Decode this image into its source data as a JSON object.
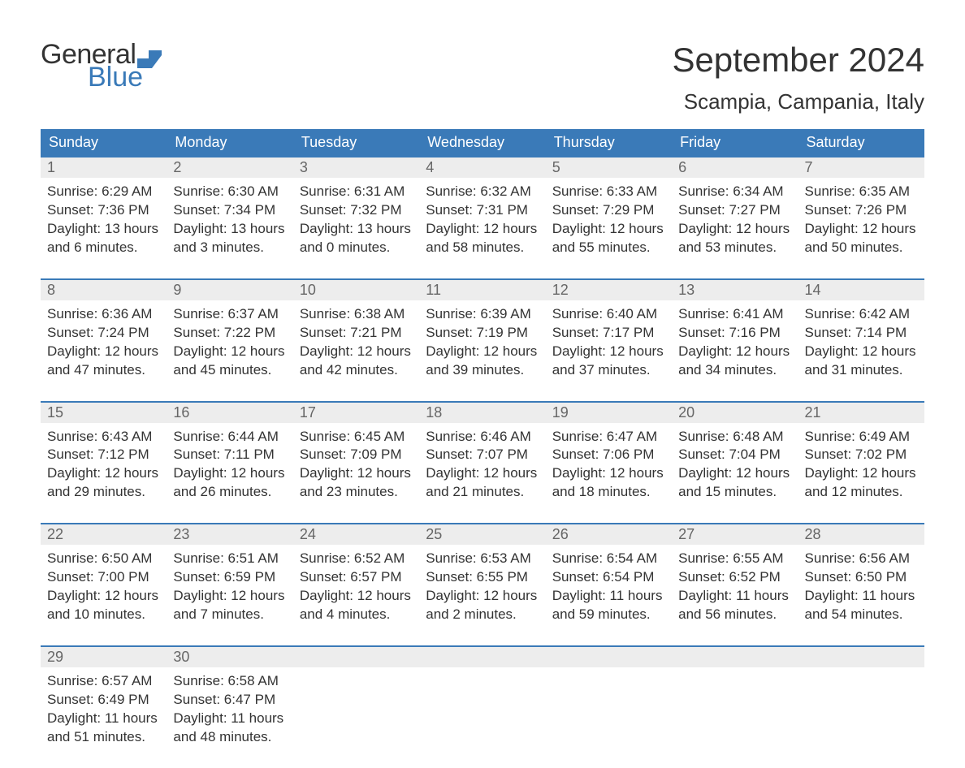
{
  "logo": {
    "text_top": "General",
    "text_bottom": "Blue",
    "top_color": "#333333",
    "bottom_color": "#3a7ab8",
    "flag_color": "#3a7ab8"
  },
  "title": "September 2024",
  "location": "Scampia, Campania, Italy",
  "styling": {
    "bg": "#ffffff",
    "header_bg": "#3a7ab8",
    "header_fg": "#ffffff",
    "daynum_bg": "#ededed",
    "daynum_fg": "#666666",
    "daynum_border_top": "#3a7ab8",
    "body_text": "#333333",
    "title_fontsize": 42,
    "location_fontsize": 26,
    "header_fontsize": 18,
    "daynum_fontsize": 18,
    "body_fontsize": 17
  },
  "weekdays": [
    "Sunday",
    "Monday",
    "Tuesday",
    "Wednesday",
    "Thursday",
    "Friday",
    "Saturday"
  ],
  "weeks": [
    [
      {
        "n": "1",
        "sunrise": "Sunrise: 6:29 AM",
        "sunset": "Sunset: 7:36 PM",
        "d1": "Daylight: 13 hours",
        "d2": "and 6 minutes."
      },
      {
        "n": "2",
        "sunrise": "Sunrise: 6:30 AM",
        "sunset": "Sunset: 7:34 PM",
        "d1": "Daylight: 13 hours",
        "d2": "and 3 minutes."
      },
      {
        "n": "3",
        "sunrise": "Sunrise: 6:31 AM",
        "sunset": "Sunset: 7:32 PM",
        "d1": "Daylight: 13 hours",
        "d2": "and 0 minutes."
      },
      {
        "n": "4",
        "sunrise": "Sunrise: 6:32 AM",
        "sunset": "Sunset: 7:31 PM",
        "d1": "Daylight: 12 hours",
        "d2": "and 58 minutes."
      },
      {
        "n": "5",
        "sunrise": "Sunrise: 6:33 AM",
        "sunset": "Sunset: 7:29 PM",
        "d1": "Daylight: 12 hours",
        "d2": "and 55 minutes."
      },
      {
        "n": "6",
        "sunrise": "Sunrise: 6:34 AM",
        "sunset": "Sunset: 7:27 PM",
        "d1": "Daylight: 12 hours",
        "d2": "and 53 minutes."
      },
      {
        "n": "7",
        "sunrise": "Sunrise: 6:35 AM",
        "sunset": "Sunset: 7:26 PM",
        "d1": "Daylight: 12 hours",
        "d2": "and 50 minutes."
      }
    ],
    [
      {
        "n": "8",
        "sunrise": "Sunrise: 6:36 AM",
        "sunset": "Sunset: 7:24 PM",
        "d1": "Daylight: 12 hours",
        "d2": "and 47 minutes."
      },
      {
        "n": "9",
        "sunrise": "Sunrise: 6:37 AM",
        "sunset": "Sunset: 7:22 PM",
        "d1": "Daylight: 12 hours",
        "d2": "and 45 minutes."
      },
      {
        "n": "10",
        "sunrise": "Sunrise: 6:38 AM",
        "sunset": "Sunset: 7:21 PM",
        "d1": "Daylight: 12 hours",
        "d2": "and 42 minutes."
      },
      {
        "n": "11",
        "sunrise": "Sunrise: 6:39 AM",
        "sunset": "Sunset: 7:19 PM",
        "d1": "Daylight: 12 hours",
        "d2": "and 39 minutes."
      },
      {
        "n": "12",
        "sunrise": "Sunrise: 6:40 AM",
        "sunset": "Sunset: 7:17 PM",
        "d1": "Daylight: 12 hours",
        "d2": "and 37 minutes."
      },
      {
        "n": "13",
        "sunrise": "Sunrise: 6:41 AM",
        "sunset": "Sunset: 7:16 PM",
        "d1": "Daylight: 12 hours",
        "d2": "and 34 minutes."
      },
      {
        "n": "14",
        "sunrise": "Sunrise: 6:42 AM",
        "sunset": "Sunset: 7:14 PM",
        "d1": "Daylight: 12 hours",
        "d2": "and 31 minutes."
      }
    ],
    [
      {
        "n": "15",
        "sunrise": "Sunrise: 6:43 AM",
        "sunset": "Sunset: 7:12 PM",
        "d1": "Daylight: 12 hours",
        "d2": "and 29 minutes."
      },
      {
        "n": "16",
        "sunrise": "Sunrise: 6:44 AM",
        "sunset": "Sunset: 7:11 PM",
        "d1": "Daylight: 12 hours",
        "d2": "and 26 minutes."
      },
      {
        "n": "17",
        "sunrise": "Sunrise: 6:45 AM",
        "sunset": "Sunset: 7:09 PM",
        "d1": "Daylight: 12 hours",
        "d2": "and 23 minutes."
      },
      {
        "n": "18",
        "sunrise": "Sunrise: 6:46 AM",
        "sunset": "Sunset: 7:07 PM",
        "d1": "Daylight: 12 hours",
        "d2": "and 21 minutes."
      },
      {
        "n": "19",
        "sunrise": "Sunrise: 6:47 AM",
        "sunset": "Sunset: 7:06 PM",
        "d1": "Daylight: 12 hours",
        "d2": "and 18 minutes."
      },
      {
        "n": "20",
        "sunrise": "Sunrise: 6:48 AM",
        "sunset": "Sunset: 7:04 PM",
        "d1": "Daylight: 12 hours",
        "d2": "and 15 minutes."
      },
      {
        "n": "21",
        "sunrise": "Sunrise: 6:49 AM",
        "sunset": "Sunset: 7:02 PM",
        "d1": "Daylight: 12 hours",
        "d2": "and 12 minutes."
      }
    ],
    [
      {
        "n": "22",
        "sunrise": "Sunrise: 6:50 AM",
        "sunset": "Sunset: 7:00 PM",
        "d1": "Daylight: 12 hours",
        "d2": "and 10 minutes."
      },
      {
        "n": "23",
        "sunrise": "Sunrise: 6:51 AM",
        "sunset": "Sunset: 6:59 PM",
        "d1": "Daylight: 12 hours",
        "d2": "and 7 minutes."
      },
      {
        "n": "24",
        "sunrise": "Sunrise: 6:52 AM",
        "sunset": "Sunset: 6:57 PM",
        "d1": "Daylight: 12 hours",
        "d2": "and 4 minutes."
      },
      {
        "n": "25",
        "sunrise": "Sunrise: 6:53 AM",
        "sunset": "Sunset: 6:55 PM",
        "d1": "Daylight: 12 hours",
        "d2": "and 2 minutes."
      },
      {
        "n": "26",
        "sunrise": "Sunrise: 6:54 AM",
        "sunset": "Sunset: 6:54 PM",
        "d1": "Daylight: 11 hours",
        "d2": "and 59 minutes."
      },
      {
        "n": "27",
        "sunrise": "Sunrise: 6:55 AM",
        "sunset": "Sunset: 6:52 PM",
        "d1": "Daylight: 11 hours",
        "d2": "and 56 minutes."
      },
      {
        "n": "28",
        "sunrise": "Sunrise: 6:56 AM",
        "sunset": "Sunset: 6:50 PM",
        "d1": "Daylight: 11 hours",
        "d2": "and 54 minutes."
      }
    ],
    [
      {
        "n": "29",
        "sunrise": "Sunrise: 6:57 AM",
        "sunset": "Sunset: 6:49 PM",
        "d1": "Daylight: 11 hours",
        "d2": "and 51 minutes."
      },
      {
        "n": "30",
        "sunrise": "Sunrise: 6:58 AM",
        "sunset": "Sunset: 6:47 PM",
        "d1": "Daylight: 11 hours",
        "d2": "and 48 minutes."
      },
      null,
      null,
      null,
      null,
      null
    ]
  ]
}
